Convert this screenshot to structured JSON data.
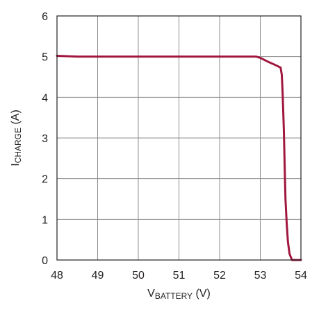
{
  "chart_data": {
    "type": "line",
    "xlabel_main": "V",
    "xlabel_sub": "BATTERY",
    "xlabel_unit": " (V)",
    "ylabel_main": "I",
    "ylabel_sub": "CHARGE",
    "ylabel_unit": " (A)",
    "xlim": [
      48,
      54
    ],
    "ylim": [
      0,
      6
    ],
    "xticks": [
      "48",
      "49",
      "50",
      "51",
      "52",
      "53",
      "54"
    ],
    "yticks": [
      "0",
      "1",
      "2",
      "3",
      "4",
      "5",
      "6"
    ],
    "grid": true,
    "series": [
      {
        "color": "#a0173f",
        "x": [
          48.0,
          48.5,
          49.0,
          50.0,
          51.0,
          52.0,
          52.9,
          53.0,
          53.2,
          53.4,
          53.5,
          53.53,
          53.55,
          53.58,
          53.6,
          53.62,
          53.65,
          53.68,
          53.72,
          53.78,
          53.85,
          54.0
        ],
        "y": [
          5.02,
          5.0,
          5.0,
          5.0,
          5.0,
          5.0,
          5.0,
          4.97,
          4.87,
          4.78,
          4.73,
          4.55,
          4.1,
          3.2,
          2.3,
          1.5,
          0.9,
          0.45,
          0.15,
          0.0,
          0.0,
          0.0
        ]
      }
    ],
    "colors": {
      "axis": "#231f20",
      "grid": "#8c8c8c",
      "text": "#231f20",
      "line": "#a0173f"
    }
  }
}
